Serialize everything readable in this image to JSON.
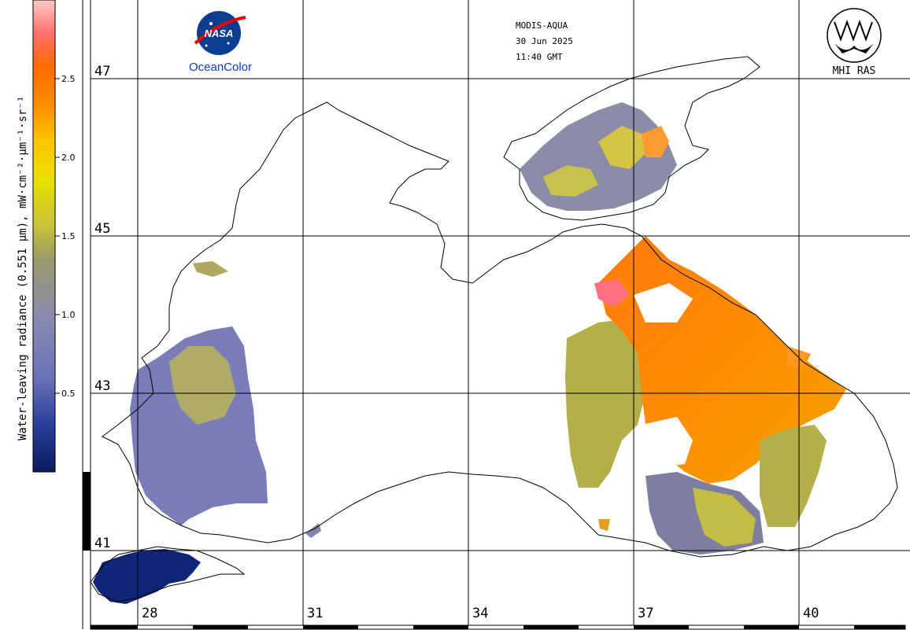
{
  "header": {
    "sensor": "MODIS-AQUA",
    "date": "30 Jun 2025",
    "time": "11:40 GMT"
  },
  "logos": {
    "nasa": "NASA",
    "oceancolor": "OceanColor",
    "mhi": "MHI RAS"
  },
  "colorbar": {
    "title": "Water-leaving radiance (0.551 μm), mW·cm⁻²·μm⁻¹·sr⁻¹",
    "ticks": [
      "2.5",
      "2.0",
      "1.5",
      "1.0",
      "0.5"
    ],
    "colors": [
      "#0b1a5c",
      "#2a3f9a",
      "#6b73b8",
      "#8a8ab0",
      "#9a9a6a",
      "#c7c23a",
      "#e8e000",
      "#ffc400",
      "#ff8c00",
      "#ff6a00",
      "#ff6f6f",
      "#ffc8c8"
    ]
  },
  "latitudes": [
    "47",
    "45",
    "43",
    "41"
  ],
  "longitudes": [
    "28",
    "31",
    "34",
    "37",
    "40"
  ]
}
